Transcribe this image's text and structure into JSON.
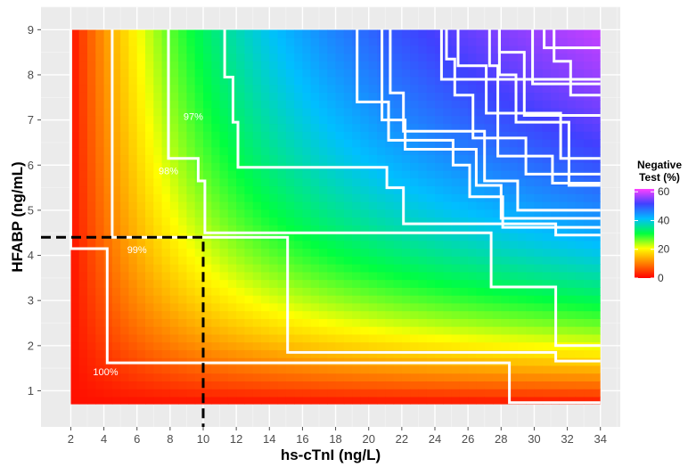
{
  "chart_data": {
    "type": "heatmap",
    "title": "",
    "xlabel": "hs-cTnI (ng/L)",
    "ylabel": "HFABP (ng/mL)",
    "xlim": [
      0.2,
      35.2
    ],
    "ylim": [
      0.2,
      9.5
    ],
    "data_xrange": [
      2,
      34
    ],
    "data_yrange": [
      0.7,
      9
    ],
    "x_ticks": [
      2,
      4,
      6,
      8,
      10,
      12,
      14,
      16,
      18,
      20,
      22,
      24,
      26,
      28,
      30,
      32,
      34
    ],
    "y_ticks": [
      1,
      2,
      3,
      4,
      5,
      6,
      7,
      8,
      9
    ],
    "grid": true,
    "panel_background": "#ebebeb",
    "legend": {
      "title": "Negative Test (%)",
      "title_lines": [
        "Negative",
        "Test (%)"
      ],
      "position": "right",
      "ticks": [
        0,
        20,
        40,
        60
      ],
      "range": [
        0,
        62
      ]
    },
    "colorscale": [
      "#ff0000",
      "#ff8000",
      "#ffff00",
      "#00ff40",
      "#00bfff",
      "#4040ff",
      "#ff40ff"
    ],
    "contour_labels": [
      {
        "text": "100%",
        "x": 4.1,
        "y": 1.35
      },
      {
        "text": "99%",
        "x": 6.0,
        "y": 4.05
      },
      {
        "text": "98%",
        "x": 7.9,
        "y": 5.8
      },
      {
        "text": "97%",
        "x": 9.4,
        "y": 7.0
      }
    ],
    "contours": [
      {
        "level": "100%",
        "points": [
          [
            2,
            9
          ],
          [
            2,
            4.15
          ],
          [
            4.2,
            4.15
          ],
          [
            4.2,
            1.62
          ],
          [
            28.5,
            1.62
          ],
          [
            28.5,
            0.74
          ],
          [
            34,
            0.74
          ]
        ]
      },
      {
        "level": "99%",
        "points": [
          [
            4.5,
            9
          ],
          [
            4.5,
            4.4
          ],
          [
            15.1,
            4.4
          ],
          [
            15.1,
            1.85
          ],
          [
            31.3,
            1.85
          ],
          [
            31.3,
            1.66
          ],
          [
            34,
            1.66
          ]
        ]
      },
      {
        "level": "98%",
        "points": [
          [
            7.9,
            9
          ],
          [
            7.9,
            6.15
          ],
          [
            9.7,
            6.15
          ],
          [
            9.7,
            5.65
          ],
          [
            10.1,
            5.65
          ],
          [
            10.1,
            4.5
          ],
          [
            27.4,
            4.5
          ],
          [
            27.4,
            3.3
          ],
          [
            31.3,
            3.3
          ],
          [
            31.3,
            2.0
          ],
          [
            34,
            2.0
          ]
        ]
      },
      {
        "level": "97%",
        "points": [
          [
            11.3,
            9
          ],
          [
            11.3,
            7.95
          ],
          [
            11.8,
            7.95
          ],
          [
            11.8,
            6.95
          ],
          [
            12.1,
            6.95
          ],
          [
            12.1,
            5.95
          ],
          [
            21.1,
            5.95
          ],
          [
            21.1,
            5.5
          ],
          [
            22.1,
            5.5
          ],
          [
            22.1,
            4.7
          ],
          [
            31.3,
            4.7
          ],
          [
            31.3,
            4.45
          ],
          [
            34,
            4.45
          ]
        ]
      },
      {
        "level": "",
        "points": [
          [
            19.3,
            9
          ],
          [
            19.3,
            7.4
          ],
          [
            21.2,
            7.4
          ],
          [
            21.2,
            6.55
          ],
          [
            25.1,
            6.55
          ],
          [
            25.1,
            6.0
          ],
          [
            26.1,
            6.0
          ],
          [
            26.1,
            5.3
          ],
          [
            28.1,
            5.3
          ],
          [
            28.1,
            4.62
          ],
          [
            34,
            4.62
          ]
        ]
      },
      {
        "level": "",
        "points": [
          [
            21.3,
            9
          ],
          [
            21.3,
            7.6
          ],
          [
            22.1,
            7.6
          ],
          [
            22.1,
            6.75
          ],
          [
            27.0,
            6.75
          ],
          [
            27.0,
            5.65
          ],
          [
            29.0,
            5.65
          ],
          [
            29.0,
            5.0
          ],
          [
            34,
            5.0
          ]
        ]
      },
      {
        "level": "",
        "points": [
          [
            24.7,
            9
          ],
          [
            24.7,
            8.35
          ],
          [
            25.2,
            8.35
          ],
          [
            25.2,
            7.55
          ],
          [
            26.3,
            7.55
          ],
          [
            26.3,
            6.6
          ],
          [
            29.5,
            6.6
          ],
          [
            29.5,
            5.8
          ],
          [
            34,
            5.8
          ]
        ]
      },
      {
        "level": "",
        "points": [
          [
            25.4,
            9
          ],
          [
            25.4,
            8.2
          ],
          [
            27.1,
            8.2
          ],
          [
            27.1,
            7.15
          ],
          [
            31.6,
            7.15
          ],
          [
            31.6,
            6.15
          ],
          [
            34,
            6.15
          ]
        ]
      },
      {
        "level": "",
        "points": [
          [
            27.9,
            9
          ],
          [
            27.9,
            8.0
          ],
          [
            28.9,
            8.0
          ],
          [
            28.9,
            6.95
          ],
          [
            32.1,
            6.95
          ],
          [
            32.1,
            5.55
          ],
          [
            34,
            5.55
          ]
        ]
      },
      {
        "level": "",
        "points": [
          [
            31.2,
            9
          ],
          [
            31.2,
            8.3
          ],
          [
            32.2,
            8.3
          ],
          [
            32.2,
            7.55
          ],
          [
            34,
            7.55
          ]
        ]
      },
      {
        "level": "",
        "points": [
          [
            29.9,
            9
          ],
          [
            29.9,
            7.8
          ],
          [
            34,
            7.8
          ]
        ]
      },
      {
        "level": "",
        "points": [
          [
            30.6,
            9
          ],
          [
            30.6,
            8.6
          ],
          [
            34,
            8.6
          ]
        ]
      },
      {
        "level": "",
        "points": [
          [
            24.4,
            9
          ],
          [
            24.4,
            7.9
          ],
          [
            34,
            7.9
          ]
        ]
      },
      {
        "level": "",
        "points": [
          [
            20.8,
            9
          ],
          [
            20.8,
            7.0
          ],
          [
            22.2,
            7.0
          ],
          [
            22.2,
            6.35
          ],
          [
            26.5,
            6.35
          ],
          [
            26.5,
            5.55
          ],
          [
            28.0,
            5.55
          ],
          [
            28.0,
            4.82
          ],
          [
            34,
            4.82
          ]
        ]
      },
      {
        "level": "",
        "points": [
          [
            27.3,
            9
          ],
          [
            27.3,
            8.2
          ],
          [
            27.8,
            8.2
          ],
          [
            27.8,
            6.2
          ],
          [
            31.1,
            6.2
          ],
          [
            31.1,
            5.6
          ],
          [
            34,
            5.6
          ]
        ]
      },
      {
        "level": "",
        "points": [
          [
            27.9,
            9
          ],
          [
            27.9,
            8.5
          ],
          [
            29.4,
            8.5
          ],
          [
            29.4,
            7.1
          ],
          [
            34,
            7.1
          ]
        ]
      }
    ],
    "reference_lines": [
      {
        "points": [
          [
            0.2,
            4.4
          ],
          [
            10,
            4.4
          ],
          [
            10,
            0.2
          ]
        ],
        "style": "dashed",
        "color": "#000000"
      }
    ]
  }
}
